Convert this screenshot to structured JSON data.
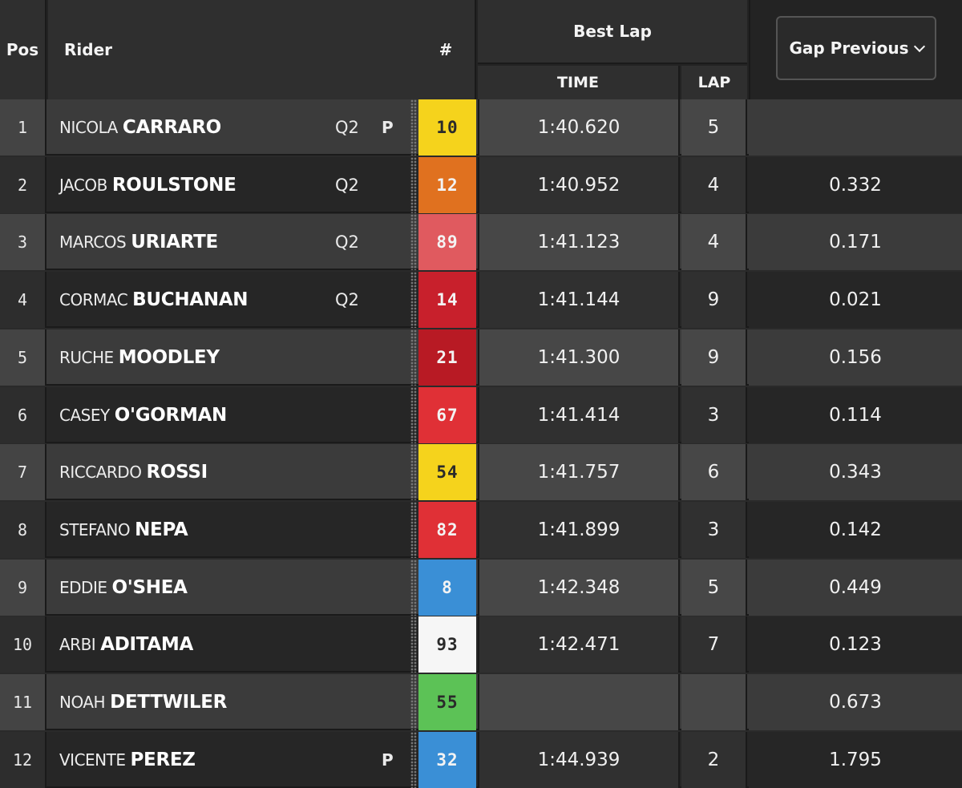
{
  "header": {
    "pos": "Pos",
    "rider": "Rider",
    "number": "#",
    "best_lap": "Best Lap",
    "time": "TIME",
    "lap": "LAP",
    "gap_selector": "Gap Previous"
  },
  "rows": [
    {
      "pos": "1",
      "first": "NICOLA",
      "last": "CARRARO",
      "q": "Q2",
      "pit": "P",
      "num": "10",
      "num_bg": "#f5d31c",
      "num_fg": "#2a2a2a",
      "time": "1:40.620",
      "lap": "5",
      "gap": ""
    },
    {
      "pos": "2",
      "first": "JACOB",
      "last": "ROULSTONE",
      "q": "Q2",
      "pit": "",
      "num": "12",
      "num_bg": "#e0711f",
      "num_fg": "#f3f3f3",
      "time": "1:40.952",
      "lap": "4",
      "gap": "0.332"
    },
    {
      "pos": "3",
      "first": "MARCOS",
      "last": "URIARTE",
      "q": "Q2",
      "pit": "",
      "num": "89",
      "num_bg": "#e05a5f",
      "num_fg": "#f3f3f3",
      "time": "1:41.123",
      "lap": "4",
      "gap": "0.171"
    },
    {
      "pos": "4",
      "first": "CORMAC",
      "last": "BUCHANAN",
      "q": "Q2",
      "pit": "",
      "num": "14",
      "num_bg": "#c8202c",
      "num_fg": "#f3f3f3",
      "time": "1:41.144",
      "lap": "9",
      "gap": "0.021"
    },
    {
      "pos": "5",
      "first": "RUCHE",
      "last": "MOODLEY",
      "q": "",
      "pit": "",
      "num": "21",
      "num_bg": "#b81a24",
      "num_fg": "#f3f3f3",
      "time": "1:41.300",
      "lap": "9",
      "gap": "0.156"
    },
    {
      "pos": "6",
      "first": "CASEY",
      "last": "O'GORMAN",
      "q": "",
      "pit": "",
      "num": "67",
      "num_bg": "#e03036",
      "num_fg": "#f3f3f3",
      "time": "1:41.414",
      "lap": "3",
      "gap": "0.114"
    },
    {
      "pos": "7",
      "first": "RICCARDO",
      "last": "ROSSI",
      "q": "",
      "pit": "",
      "num": "54",
      "num_bg": "#f5d31c",
      "num_fg": "#2a2a2a",
      "time": "1:41.757",
      "lap": "6",
      "gap": "0.343"
    },
    {
      "pos": "8",
      "first": "STEFANO",
      "last": "NEPA",
      "q": "",
      "pit": "",
      "num": "82",
      "num_bg": "#e03036",
      "num_fg": "#f3f3f3",
      "time": "1:41.899",
      "lap": "3",
      "gap": "0.142"
    },
    {
      "pos": "9",
      "first": "EDDIE",
      "last": "O'SHEA",
      "q": "",
      "pit": "",
      "num": "8",
      "num_bg": "#3a8fd6",
      "num_fg": "#f3f3f3",
      "time": "1:42.348",
      "lap": "5",
      "gap": "0.449"
    },
    {
      "pos": "10",
      "first": "ARBI",
      "last": "ADITAMA",
      "q": "",
      "pit": "",
      "num": "93",
      "num_bg": "#f6f6f6",
      "num_fg": "#2a2a2a",
      "time": "1:42.471",
      "lap": "7",
      "gap": "0.123"
    },
    {
      "pos": "11",
      "first": "NOAH",
      "last": "DETTWILER",
      "q": "",
      "pit": "",
      "num": "55",
      "num_bg": "#5cc256",
      "num_fg": "#2a2a2a",
      "time": "",
      "lap": "",
      "gap": "0.673"
    },
    {
      "pos": "12",
      "first": "VICENTE",
      "last": "PEREZ",
      "q": "",
      "pit": "P",
      "num": "32",
      "num_bg": "#3a8fd6",
      "num_fg": "#f3f3f3",
      "time": "1:44.939",
      "lap": "2",
      "gap": "1.795"
    }
  ],
  "colors": {
    "row_light": "#3b3b3b",
    "row_dark": "#262626",
    "pos_light": "#444444",
    "pos_dark": "#2d2d2d",
    "time_light": "#474747",
    "time_dark": "#303030"
  }
}
